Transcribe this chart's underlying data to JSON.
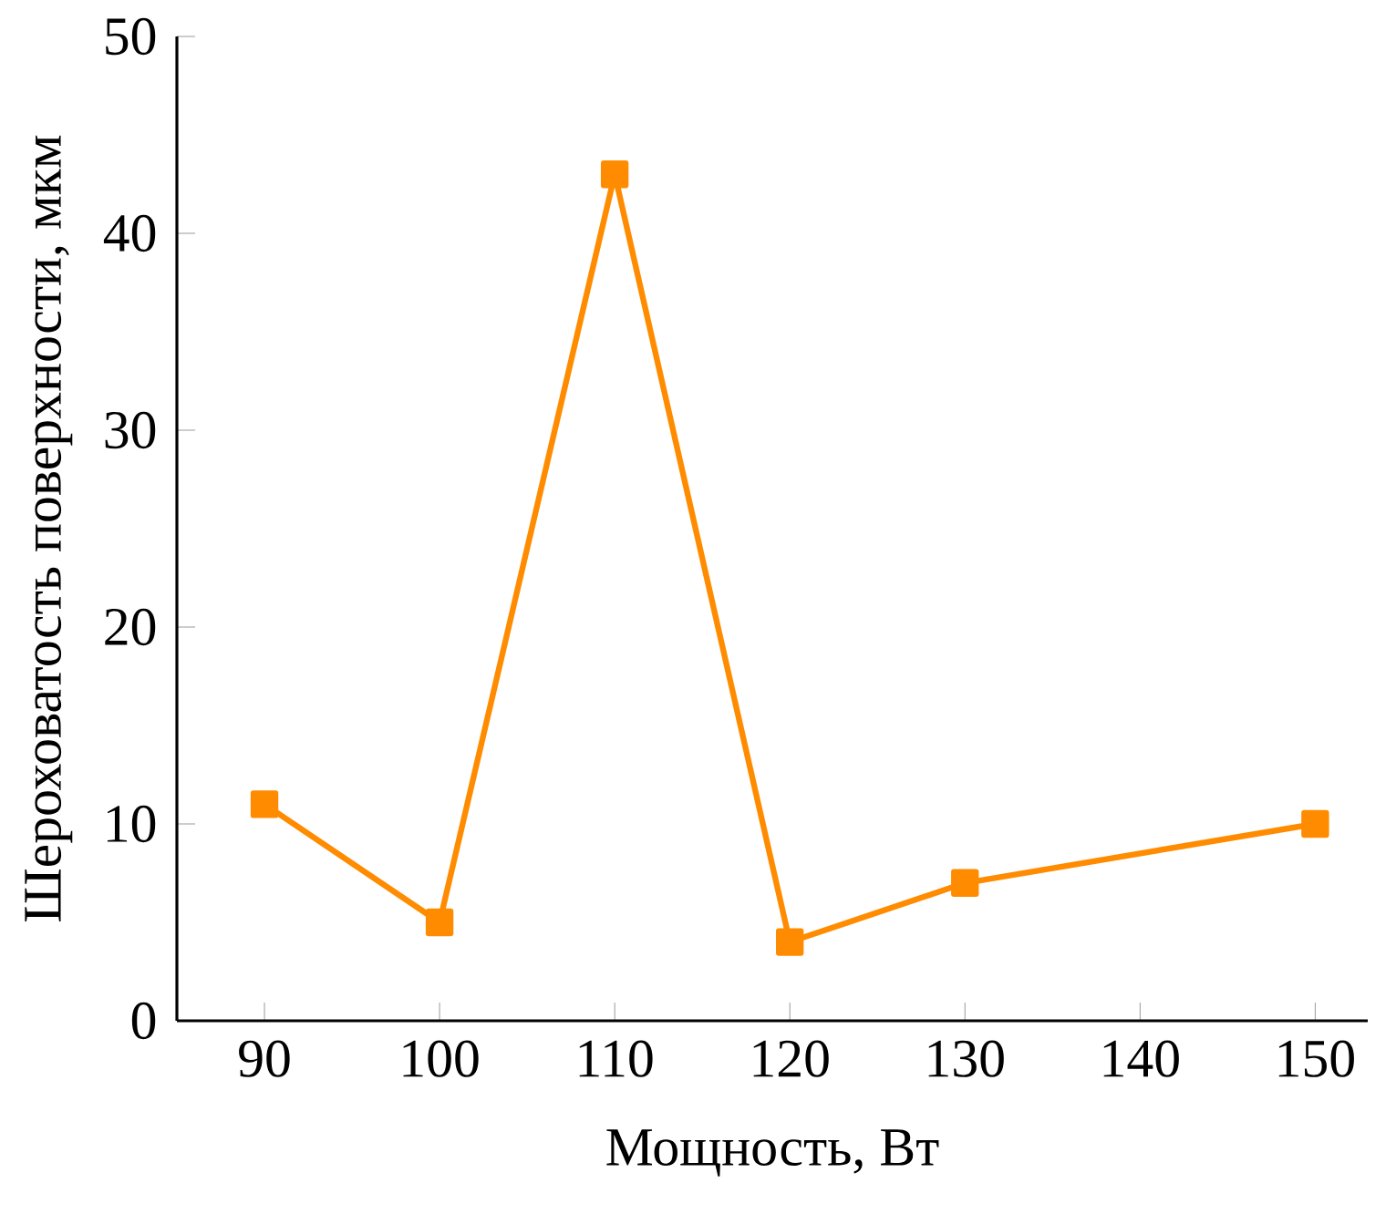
{
  "chart_data": {
    "type": "line",
    "xlabel": "Мощность, Вт",
    "ylabel": "Шероховатость поверхности, мкм",
    "x": [
      90,
      100,
      110,
      120,
      130,
      150
    ],
    "values": [
      11,
      5,
      43,
      4,
      7,
      10
    ],
    "color": "#ff8c00",
    "marker": "square",
    "line_style": "solid",
    "xlim": [
      85,
      153
    ],
    "ylim": [
      0,
      50
    ],
    "xticks": [
      90,
      100,
      110,
      120,
      130,
      140,
      150
    ],
    "yticks": [
      0,
      10,
      20,
      30,
      40,
      50
    ]
  }
}
